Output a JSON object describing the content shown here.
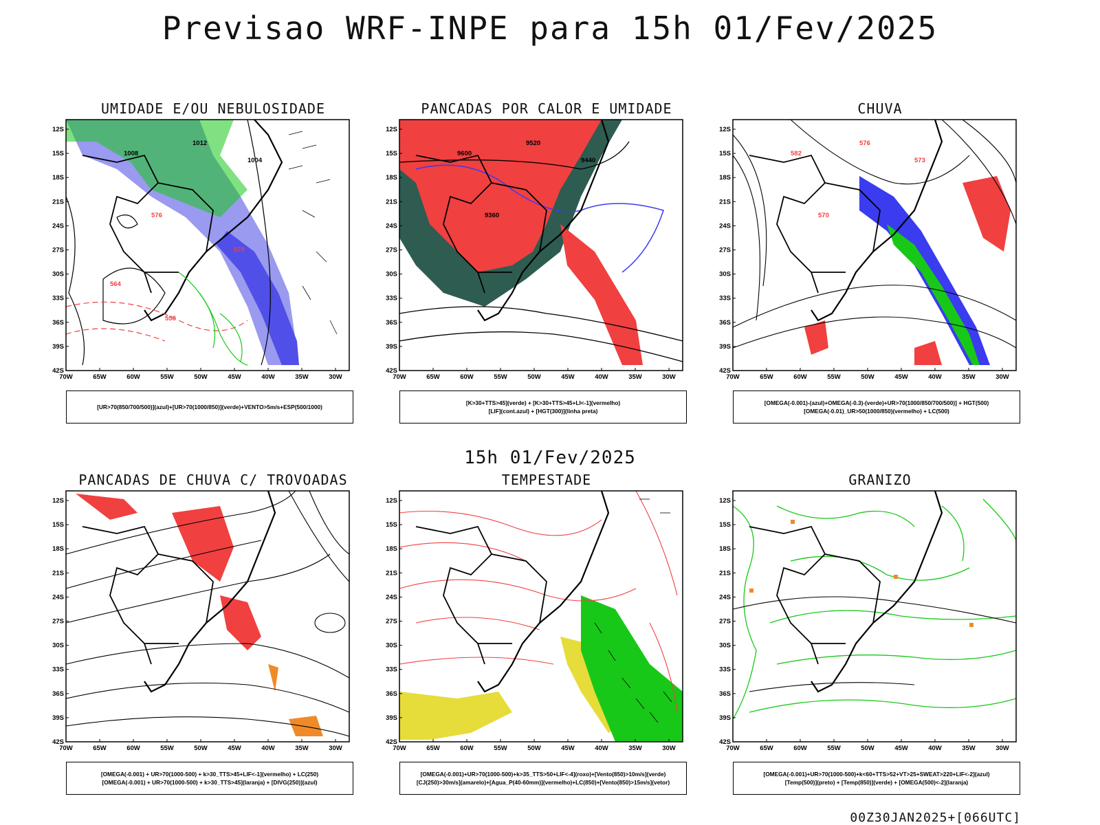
{
  "title": "Previsao WRF-INPE  para 15h 01/Fev/2025",
  "mid_time": "15h 01/Fev/2025",
  "run_label": "00Z30JAN2025+[066UTC]",
  "lat_labels": [
    "12S",
    "15S",
    "18S",
    "21S",
    "24S",
    "27S",
    "30S",
    "33S",
    "36S",
    "39S",
    "42S"
  ],
  "lon_labels": [
    "70W",
    "65W",
    "60W",
    "55W",
    "50W",
    "45W",
    "40W",
    "35W",
    "30W"
  ],
  "panels": [
    {
      "title": "UMIDADE E/OU NEBULOSIDADE",
      "legend": [
        "[UR>70(850/700/500)](azul)+[UR>70(1000/850)](verde)+VENTO>5m/s+ESP(500/1000)"
      ],
      "contour_labels": [
        "1008",
        "1012",
        "1004",
        "576",
        "570",
        "564",
        "558"
      ]
    },
    {
      "title": "PANCADAS POR CALOR E UMIDADE",
      "legend": [
        "[K>30+TTS>45](verde) + [K>30+TTS>45+LI<-1](vermelho)",
        "[LIF](cont.azul) + [HGT(300)](linha preta)"
      ],
      "contour_labels": [
        "9600",
        "9520",
        "9440",
        "9360"
      ]
    },
    {
      "title": "CHUVA",
      "legend": [
        "[OMEGA(-0.001)-(azul)+OMEGA(-0.3)-(verde)+UR>70(1000/850/700/500)] + HGT(500)",
        "[OMEGA(-0.01)_UR>50(1000/850)(vermelho) + LC(500)"
      ],
      "contour_labels": [
        "582",
        "576",
        "573",
        "570"
      ]
    },
    {
      "title": "PANCADAS DE CHUVA C/ TROVOADAS",
      "legend": [
        "[OMEGA(-0.001) + UR>70(1000-500) + k>30_TTS>45+LIF<-1](vermelho) + LC(250)",
        "[OMEGA(-0.001) + UR>70(1000-500) + k>30_TTS>45](laranja) + [DIVG(250)](azul)"
      ],
      "contour_labels": []
    },
    {
      "title": "TEMPESTADE",
      "legend": [
        "[OMEGA(-0.001)+UR>70(1000-500)+k>35_TTS>50+LIF<-4](roxo)+[Vento(850)>10m/s](verde)",
        "[CJ(250)>30m/s](amarelo)+[Agua_P(40-60mm)](vermelho)+LC(850)+[Vento(850)>15m/s](vetor)"
      ],
      "contour_labels": []
    },
    {
      "title": "GRANIZO",
      "legend": [
        "[OMEGA(-0.001)+UR>70(1000-500)+k<60+TTS>52+VT>25+SWEAT>220+LIF<-2](azul)",
        "[Temp(500)](preto) + [Temp(850)](verde) + [OMEGA(500)<-2](laranja)"
      ],
      "contour_labels": []
    }
  ],
  "colors": {
    "blue": "#3b3bf0",
    "lavender": "#9a9af0",
    "green": "#18c818",
    "red": "#f04040",
    "dark_teal": "#2e5c50",
    "yellow": "#e6dc3a",
    "orange": "#f08a28",
    "black": "#000000"
  }
}
